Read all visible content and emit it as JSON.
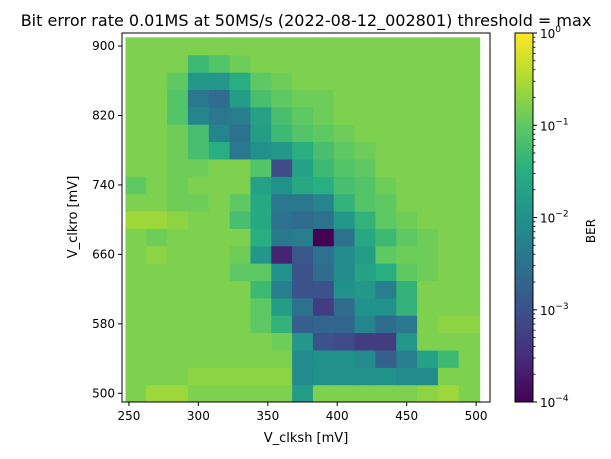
{
  "chart_data": {
    "type": "heatmap",
    "title": "Bit error rate 0.01MS at 50MS/s (2022-08-12_002801) threshold = max",
    "xlabel": "V_clksh [mV]",
    "ylabel": "V_clkro [mV]",
    "xlim": [
      245,
      510
    ],
    "ylim": [
      490,
      915
    ],
    "x_ticks": [
      "250",
      "300",
      "350",
      "400",
      "450",
      "500"
    ],
    "y_ticks": [
      "500",
      "580",
      "660",
      "740",
      "820",
      "900"
    ],
    "x_tick_values": [
      250,
      300,
      350,
      400,
      450,
      500
    ],
    "y_tick_values": [
      500,
      580,
      660,
      740,
      820,
      900
    ],
    "x_centers": [
      255,
      270,
      285,
      300,
      315,
      330,
      345,
      360,
      375,
      390,
      405,
      420,
      435,
      450,
      465,
      480,
      495
    ],
    "y_centers": [
      500,
      520,
      540,
      560,
      580,
      600,
      620,
      640,
      660,
      680,
      700,
      720,
      740,
      760,
      780,
      800,
      820,
      840,
      860,
      880,
      900
    ],
    "log_values": [
      [
        -0.8,
        -0.6,
        -0.6,
        -0.8,
        -0.8,
        -0.8,
        -0.8,
        -0.8,
        -1.8,
        -0.8,
        -0.8,
        -0.8,
        -0.8,
        -0.8,
        -0.7,
        -0.6,
        -0.8
      ],
      [
        -0.8,
        -0.8,
        -0.8,
        -0.7,
        -0.7,
        -0.7,
        -0.7,
        -0.7,
        -2.1,
        -2.0,
        -2.0,
        -2.0,
        -2.0,
        -2.1,
        -2.1,
        -0.8,
        -0.8
      ],
      [
        -0.8,
        -0.8,
        -0.8,
        -0.8,
        -0.8,
        -0.8,
        -0.8,
        -0.8,
        -2.1,
        -2.0,
        -2.0,
        -2.1,
        -2.8,
        -2.3,
        -1.7,
        -1.3,
        -0.8
      ],
      [
        -0.8,
        -0.8,
        -0.8,
        -0.8,
        -0.8,
        -0.8,
        -0.8,
        -0.9,
        -1.9,
        -3.0,
        -3.1,
        -3.3,
        -3.3,
        -1.9,
        -0.8,
        -0.8,
        -0.8
      ],
      [
        -0.8,
        -0.8,
        -0.8,
        -0.8,
        -0.8,
        -0.8,
        -1.0,
        -1.4,
        -2.8,
        -2.7,
        -2.7,
        -2.2,
        -2.6,
        -2.4,
        -0.8,
        -0.7,
        -0.7
      ],
      [
        -0.8,
        -0.8,
        -0.8,
        -0.8,
        -0.8,
        -0.8,
        -1.0,
        -1.8,
        -2.5,
        -3.3,
        -2.6,
        -2.0,
        -2.0,
        -1.4,
        -0.8,
        -0.8,
        -0.8
      ],
      [
        -0.8,
        -0.8,
        -0.8,
        -0.8,
        -0.8,
        -0.8,
        -1.3,
        -2.3,
        -3.0,
        -3.0,
        -2.0,
        -1.9,
        -2.3,
        -1.4,
        -0.8,
        -0.8,
        -0.8
      ],
      [
        -0.8,
        -0.8,
        -0.8,
        -0.8,
        -0.8,
        -1.0,
        -1.0,
        -2.0,
        -3.0,
        -2.6,
        -2.1,
        -1.7,
        -1.5,
        -1.0,
        -0.9,
        -0.8,
        -0.8
      ],
      [
        -0.8,
        -0.7,
        -0.8,
        -0.8,
        -0.8,
        -0.9,
        -1.9,
        -3.6,
        -2.9,
        -2.5,
        -2.1,
        -1.8,
        -1.0,
        -0.9,
        -0.9,
        -0.8,
        -0.8
      ],
      [
        -0.8,
        -0.9,
        -0.8,
        -0.8,
        -0.8,
        -0.8,
        -1.5,
        -2.4,
        -2.3,
        -4.0,
        -2.5,
        -1.6,
        -1.3,
        -1.0,
        -0.9,
        -0.8,
        -0.8
      ],
      [
        -0.6,
        -0.6,
        -0.7,
        -0.8,
        -0.8,
        -1.2,
        -1.6,
        -2.5,
        -2.6,
        -2.5,
        -1.9,
        -1.4,
        -1.0,
        -0.9,
        -0.8,
        -0.8,
        -0.8
      ],
      [
        -0.8,
        -0.8,
        -0.9,
        -0.9,
        -0.8,
        -1.0,
        -1.6,
        -2.4,
        -2.4,
        -2.2,
        -1.4,
        -1.1,
        -1.0,
        -0.8,
        -0.8,
        -0.8,
        -0.8
      ],
      [
        -1.0,
        -0.8,
        -0.9,
        -0.8,
        -0.8,
        -0.8,
        -1.7,
        -2.0,
        -1.6,
        -1.5,
        -1.2,
        -1.1,
        -0.9,
        -0.8,
        -0.8,
        -0.8,
        -0.8
      ],
      [
        -0.8,
        -0.8,
        -0.9,
        -0.9,
        -0.8,
        -0.8,
        -1.1,
        -3.1,
        -1.7,
        -1.3,
        -1.1,
        -1.0,
        -0.8,
        -0.8,
        -0.8,
        -0.8,
        -0.8
      ],
      [
        -0.8,
        -0.8,
        -0.9,
        -1.2,
        -1.5,
        -2.4,
        -2.0,
        -1.9,
        -1.5,
        -1.2,
        -1.0,
        -0.9,
        -0.8,
        -0.8,
        -0.8,
        -0.8,
        -0.8
      ],
      [
        -0.8,
        -0.8,
        -0.9,
        -1.2,
        -2.2,
        -2.5,
        -1.8,
        -1.3,
        -1.1,
        -1.0,
        -0.9,
        -0.8,
        -0.8,
        -0.8,
        -0.8,
        -0.8,
        -0.8
      ],
      [
        -0.8,
        -0.8,
        -1.1,
        -2.2,
        -2.4,
        -2.3,
        -1.7,
        -1.2,
        -1.0,
        -0.9,
        -0.8,
        -0.8,
        -0.8,
        -0.8,
        -0.8,
        -0.8,
        -0.8
      ],
      [
        -0.8,
        -0.8,
        -1.1,
        -2.4,
        -2.6,
        -1.8,
        -1.2,
        -1.0,
        -0.9,
        -0.9,
        -0.8,
        -0.8,
        -0.8,
        -0.8,
        -0.8,
        -0.8,
        -0.8
      ],
      [
        -0.8,
        -0.8,
        -1.0,
        -1.9,
        -1.9,
        -1.5,
        -1.0,
        -0.9,
        -0.8,
        -0.8,
        -0.8,
        -0.8,
        -0.8,
        -0.8,
        -0.8,
        -0.8,
        -0.8
      ],
      [
        -0.8,
        -0.8,
        -0.8,
        -1.3,
        -1.1,
        -0.9,
        -0.8,
        -0.8,
        -0.8,
        -0.8,
        -0.8,
        -0.8,
        -0.8,
        -0.8,
        -0.8,
        -0.8,
        -0.8
      ],
      [
        -0.8,
        -0.8,
        -0.8,
        -0.8,
        -0.8,
        -0.8,
        -0.8,
        -0.8,
        -0.8,
        -0.8,
        -0.8,
        -0.8,
        -0.8,
        -0.8,
        -0.8,
        -0.8,
        -0.8
      ]
    ],
    "colorbar": {
      "label": "BER",
      "scale": "log",
      "range": [
        0.0001,
        1
      ],
      "colormap": "viridis",
      "ticks": [
        {
          "base": "10",
          "exp": "0",
          "value": 1
        },
        {
          "base": "10",
          "exp": "−1",
          "value": 0.1
        },
        {
          "base": "10",
          "exp": "−2",
          "value": 0.01
        },
        {
          "base": "10",
          "exp": "−3",
          "value": 0.001
        },
        {
          "base": "10",
          "exp": "−4",
          "value": 0.0001
        }
      ]
    },
    "grid": false,
    "legend": "none"
  }
}
